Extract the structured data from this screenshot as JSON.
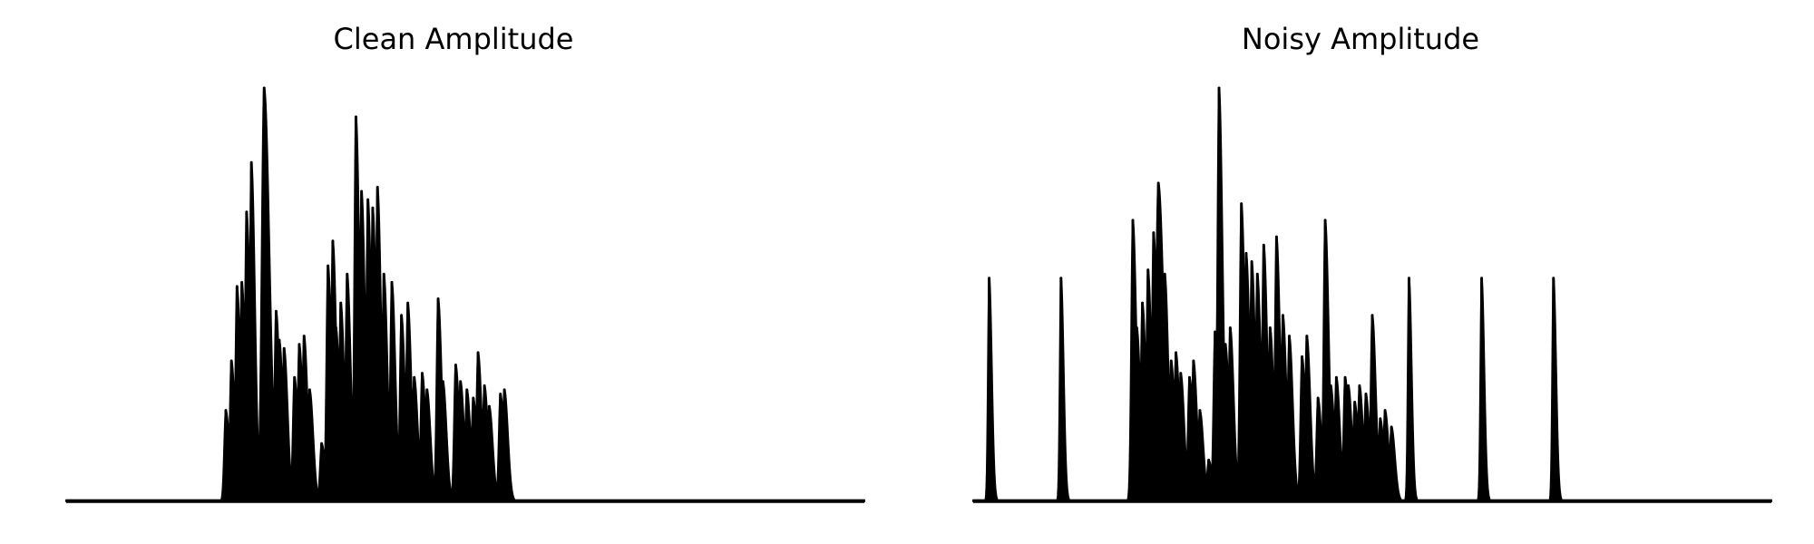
{
  "chart_data": [
    {
      "type": "area",
      "title": "Clean Amplitude",
      "xlim": [
        0,
        1000
      ],
      "ylim": [
        0,
        1
      ],
      "grid": false,
      "axes_visible": false,
      "color": "#000000",
      "series": [
        {
          "peaks": [
            [
              200,
              0.22,
              2
            ],
            [
              207,
              0.34,
              2
            ],
            [
              214,
              0.52,
              2
            ],
            [
              220,
              0.53,
              2
            ],
            [
              226,
              0.7,
              2
            ],
            [
              232,
              0.82,
              2
            ],
            [
              248,
              1.0,
              3
            ],
            [
              263,
              0.46,
              2
            ],
            [
              267,
              0.39,
              2
            ],
            [
              273,
              0.37,
              2
            ],
            [
              286,
              0.3,
              2
            ],
            [
              292,
              0.38,
              2
            ],
            [
              298,
              0.4,
              2
            ],
            [
              305,
              0.27,
              2
            ],
            [
              320,
              0.14,
              2
            ],
            [
              328,
              0.57,
              2
            ],
            [
              334,
              0.63,
              2
            ],
            [
              338,
              0.42,
              2
            ],
            [
              344,
              0.48,
              2
            ],
            [
              352,
              0.55,
              2
            ],
            [
              363,
              0.93,
              2
            ],
            [
              370,
              0.75,
              2
            ],
            [
              378,
              0.73,
              2
            ],
            [
              384,
              0.71,
              2
            ],
            [
              390,
              0.76,
              2
            ],
            [
              398,
              0.55,
              2
            ],
            [
              408,
              0.53,
              2
            ],
            [
              420,
              0.45,
              2
            ],
            [
              428,
              0.48,
              2
            ],
            [
              436,
              0.3,
              2
            ],
            [
              446,
              0.31,
              2
            ],
            [
              452,
              0.27,
              2
            ],
            [
              466,
              0.49,
              2
            ],
            [
              472,
              0.29,
              2
            ],
            [
              488,
              0.33,
              2
            ],
            [
              494,
              0.29,
              2
            ],
            [
              502,
              0.27,
              2
            ],
            [
              510,
              0.25,
              2
            ],
            [
              516,
              0.36,
              2
            ],
            [
              524,
              0.28,
              2
            ],
            [
              530,
              0.23,
              2
            ],
            [
              544,
              0.26,
              2
            ],
            [
              549,
              0.27,
              2
            ]
          ]
        }
      ]
    },
    {
      "type": "area",
      "title": "Noisy Amplitude",
      "xlim": [
        0,
        1000
      ],
      "ylim": [
        0,
        1
      ],
      "grid": false,
      "axes_visible": false,
      "color": "#000000",
      "series": [
        {
          "peaks": [
            [
              20,
              0.54,
              1.5
            ],
            [
              110,
              0.54,
              1.5
            ],
            [
              200,
              0.68,
              2
            ],
            [
              205,
              0.42,
              2
            ],
            [
              212,
              0.48,
              2
            ],
            [
              219,
              0.56,
              2
            ],
            [
              226,
              0.65,
              2
            ],
            [
              232,
              0.77,
              3
            ],
            [
              240,
              0.55,
              2
            ],
            [
              248,
              0.34,
              2
            ],
            [
              254,
              0.36,
              2
            ],
            [
              260,
              0.31,
              2
            ],
            [
              271,
              0.3,
              2
            ],
            [
              276,
              0.34,
              2
            ],
            [
              284,
              0.22,
              2
            ],
            [
              295,
              0.1,
              2
            ],
            [
              303,
              0.41,
              2
            ],
            [
              308,
              1.0,
              2
            ],
            [
              316,
              0.38,
              2
            ],
            [
              322,
              0.42,
              2
            ],
            [
              336,
              0.72,
              2
            ],
            [
              342,
              0.6,
              2
            ],
            [
              349,
              0.58,
              2
            ],
            [
              356,
              0.55,
              2
            ],
            [
              364,
              0.62,
              2
            ],
            [
              372,
              0.42,
              2
            ],
            [
              380,
              0.64,
              2
            ],
            [
              388,
              0.45,
              2
            ],
            [
              396,
              0.4,
              2
            ],
            [
              412,
              0.35,
              2
            ],
            [
              418,
              0.4,
              2
            ],
            [
              432,
              0.25,
              2
            ],
            [
              441,
              0.68,
              2
            ],
            [
              448,
              0.28,
              2
            ],
            [
              455,
              0.3,
              2
            ],
            [
              466,
              0.3,
              2
            ],
            [
              470,
              0.28,
              2
            ],
            [
              478,
              0.24,
              2
            ],
            [
              484,
              0.28,
              2
            ],
            [
              492,
              0.26,
              2
            ],
            [
              500,
              0.45,
              2
            ],
            [
              510,
              0.2,
              2
            ],
            [
              516,
              0.22,
              2
            ],
            [
              524,
              0.18,
              2
            ],
            [
              546,
              0.54,
              1.5
            ],
            [
              637,
              0.54,
              1.5
            ],
            [
              727,
              0.54,
              1.5
            ]
          ]
        }
      ]
    }
  ]
}
